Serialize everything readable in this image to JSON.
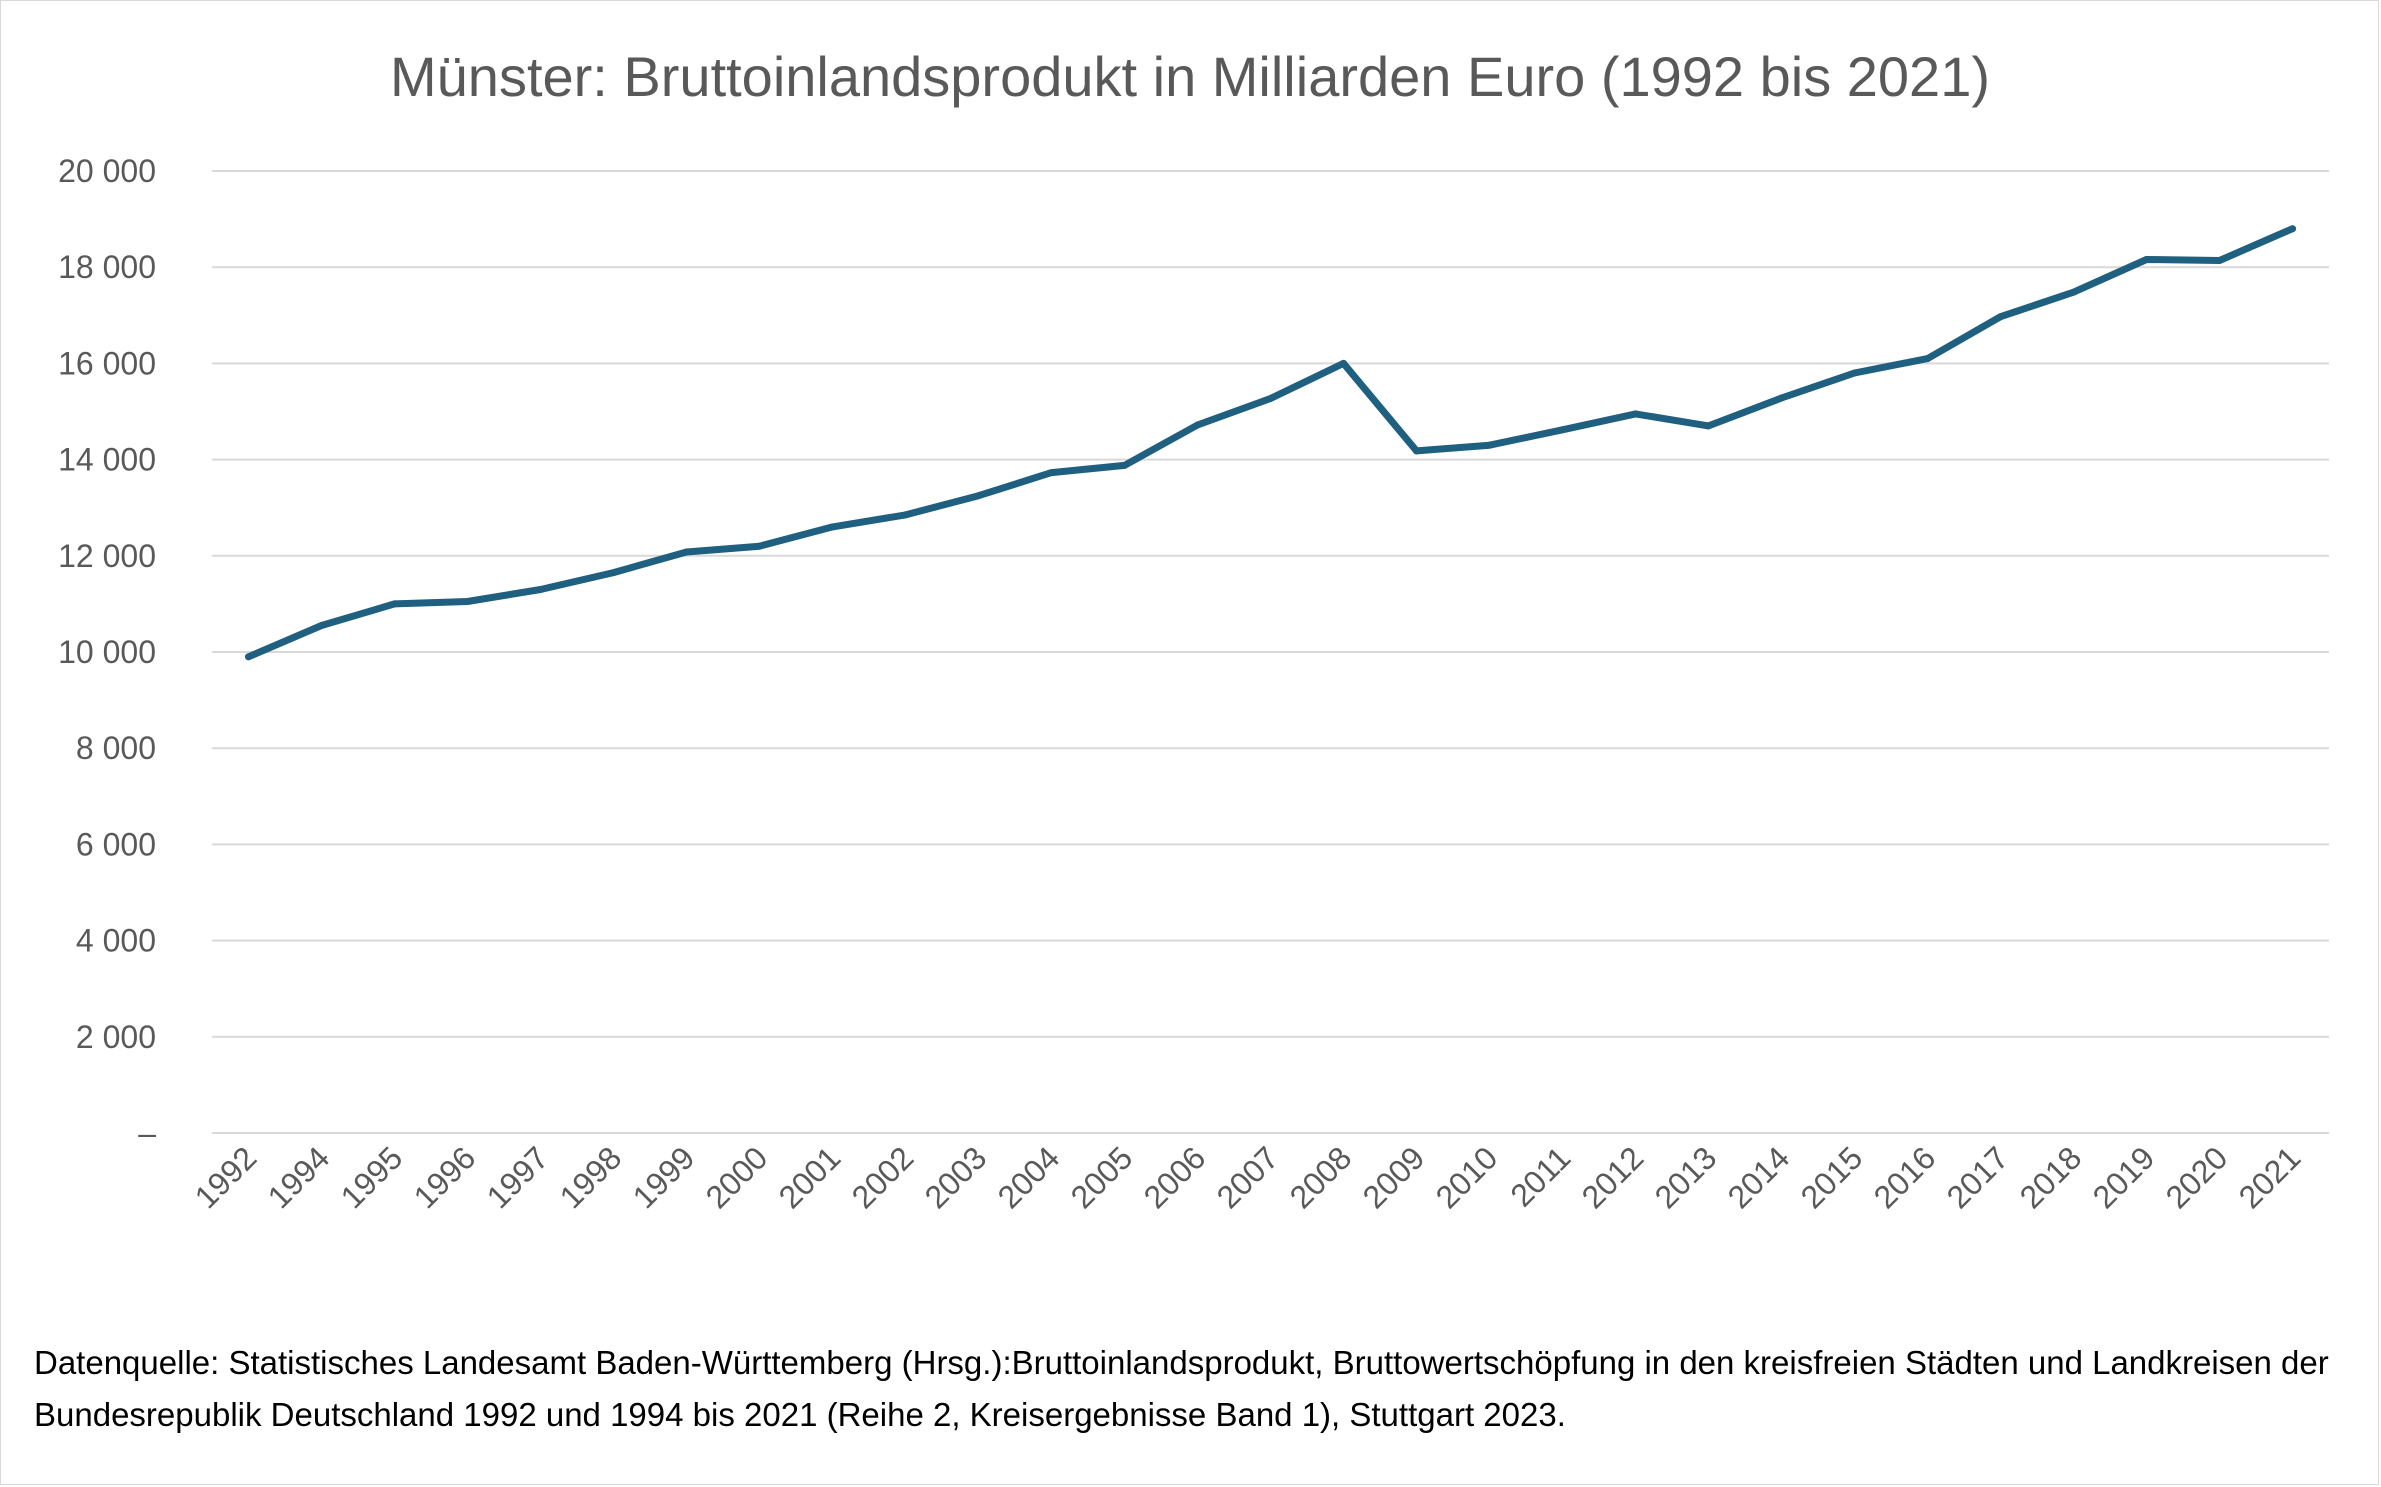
{
  "chart_data": {
    "type": "line",
    "title": "Münster: Bruttoinlandsprodukt in Milliarden Euro (1992 bis 2021)",
    "xlabel": "",
    "ylabel": "",
    "ylim": [
      0,
      20000
    ],
    "y_ticks": [
      "–",
      "2 000",
      "4 000",
      "6 000",
      "8 000",
      "10 000",
      "12 000",
      "14 000",
      "16 000",
      "18 000",
      "20 000"
    ],
    "grid": true,
    "legend": "none",
    "categories": [
      "1992",
      "1994",
      "1995",
      "1996",
      "1997",
      "1998",
      "1999",
      "2000",
      "2001",
      "2002",
      "2003",
      "2004",
      "2005",
      "2006",
      "2007",
      "2008",
      "2009",
      "2010",
      "2011",
      "2012",
      "2013",
      "2014",
      "2015",
      "2016",
      "2017",
      "2018",
      "2019",
      "2020",
      "2021"
    ],
    "series": [
      {
        "color": "#1f5f7f",
        "values": [
          9900,
          10550,
          11000,
          11050,
          11300,
          11650,
          12080,
          12200,
          12600,
          12850,
          13250,
          13730,
          13880,
          14720,
          15270,
          16000,
          14180,
          14300,
          14620,
          14950,
          14700,
          15280,
          15800,
          16100,
          16970,
          17480,
          18160,
          18140,
          18800
        ]
      }
    ]
  },
  "source_note": "Datenquelle: Statistisches Landesamt Baden-Württemberg (Hrsg.):Bruttoinlandsprodukt, Bruttowertschöpfung in den kreisfreien Städten und Landkreisen der Bundesrepublik Deutschland 1992 und 1994 bis 2021 (Reihe 2, Kreisergebnisse Band 1), Stuttgart 2023.",
  "colors": {
    "line": "#1f5f7f",
    "grid": "#d9d9d9",
    "axis_text": "#595959"
  }
}
